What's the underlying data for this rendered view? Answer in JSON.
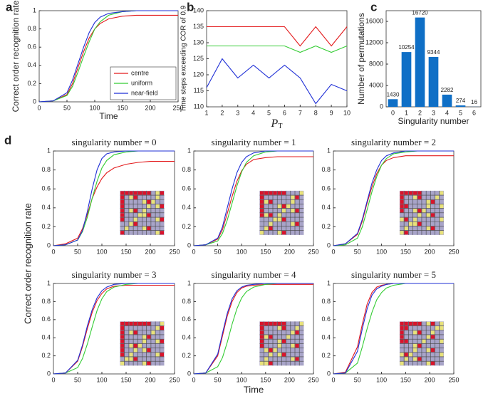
{
  "panel_labels": [
    "a",
    "b",
    "c",
    "d"
  ],
  "figure_d": {
    "xlabel": "Time",
    "ylabel": "Correct order recognition rate"
  },
  "chart_data": [
    {
      "type": "line",
      "xlabel": "Time",
      "ylabel": "Correct order recognition rate",
      "legend": "lower right",
      "x": [
        0,
        25,
        50,
        60,
        70,
        80,
        90,
        100,
        110,
        125,
        150,
        175,
        200,
        250
      ],
      "xlim": [
        0,
        250
      ],
      "xticks": [
        0,
        50,
        100,
        150,
        200,
        250
      ],
      "ylim": [
        0,
        1
      ],
      "yticks": [
        0,
        0.2,
        0.4,
        0.6,
        0.8,
        1
      ],
      "series": [
        {
          "name": "centre",
          "color": "#e31a1c",
          "values": [
            0,
            0.01,
            0.08,
            0.2,
            0.38,
            0.55,
            0.7,
            0.8,
            0.86,
            0.91,
            0.94,
            0.95,
            0.95,
            0.95
          ]
        },
        {
          "name": "uniform",
          "color": "#33cc33",
          "values": [
            0,
            0.01,
            0.07,
            0.17,
            0.33,
            0.5,
            0.66,
            0.8,
            0.88,
            0.95,
            0.99,
            1,
            1,
            1
          ]
        },
        {
          "name": "near-field",
          "color": "#1f2fd6",
          "values": [
            0,
            0.01,
            0.1,
            0.24,
            0.42,
            0.6,
            0.76,
            0.87,
            0.93,
            0.97,
            0.99,
            1,
            1,
            1
          ]
        }
      ]
    },
    {
      "type": "line",
      "xlabel": "P",
      "xlabel_subscript": "T",
      "ylabel": "Time steps exceeding COR of 0.9",
      "x": [
        1,
        2,
        3,
        4,
        5,
        6,
        7,
        8,
        9,
        10
      ],
      "xlim": [
        1,
        10
      ],
      "xticks": [
        1,
        2,
        3,
        4,
        5,
        6,
        7,
        8,
        9,
        10
      ],
      "ylim": [
        110,
        140
      ],
      "yticks": [
        110,
        115,
        120,
        125,
        130,
        135,
        140
      ],
      "series": [
        {
          "color": "#e31a1c",
          "values": [
            135,
            135,
            135,
            135,
            135,
            135,
            129,
            135,
            129,
            135
          ]
        },
        {
          "color": "#33cc33",
          "values": [
            129,
            129,
            129,
            129,
            129,
            129,
            127,
            129,
            127,
            129
          ]
        },
        {
          "color": "#1f2fd6",
          "values": [
            116,
            125,
            119,
            123,
            119,
            123,
            119,
            111,
            117,
            115
          ]
        }
      ]
    },
    {
      "type": "bar",
      "xlabel": "Singularity number",
      "ylabel": "Number of permutations",
      "color": "#0f6fc6",
      "categories": [
        "0",
        "1",
        "2",
        "3",
        "4",
        "5",
        "6"
      ],
      "values": [
        1430,
        10254,
        16720,
        9344,
        2282,
        274,
        16
      ],
      "ylim": [
        0,
        18000
      ],
      "yticks": [
        0,
        4000,
        8000,
        12000,
        16000
      ]
    },
    {
      "type": "line",
      "title": "singularity number = 0",
      "x": [
        0,
        25,
        50,
        60,
        70,
        80,
        90,
        100,
        110,
        125,
        150,
        175,
        200,
        250
      ],
      "xlim": [
        0,
        250
      ],
      "xticks": [
        0,
        50,
        100,
        150,
        200,
        250
      ],
      "ylim": [
        0,
        1
      ],
      "yticks": [
        0,
        0.2,
        0.4,
        0.6,
        0.8,
        1
      ],
      "series": [
        {
          "color": "#e31a1c",
          "values": [
            0,
            0.02,
            0.08,
            0.18,
            0.33,
            0.5,
            0.62,
            0.71,
            0.77,
            0.82,
            0.86,
            0.88,
            0.89,
            0.89
          ]
        },
        {
          "color": "#33cc33",
          "values": [
            0,
            0.01,
            0.06,
            0.15,
            0.3,
            0.5,
            0.68,
            0.82,
            0.9,
            0.96,
            0.99,
            1,
            1,
            1
          ]
        },
        {
          "color": "#1f2fd6",
          "values": [
            0,
            0.01,
            0.06,
            0.16,
            0.36,
            0.6,
            0.8,
            0.92,
            0.97,
            0.99,
            1,
            1,
            1,
            1
          ]
        }
      ]
    },
    {
      "type": "line",
      "title": "singularity number = 1",
      "x": [
        0,
        25,
        50,
        60,
        70,
        80,
        90,
        100,
        110,
        125,
        150,
        175,
        200,
        250
      ],
      "xlim": [
        0,
        250
      ],
      "xticks": [
        0,
        50,
        100,
        150,
        200,
        250
      ],
      "ylim": [
        0,
        1
      ],
      "yticks": [
        0,
        0.2,
        0.4,
        0.6,
        0.8,
        1
      ],
      "series": [
        {
          "color": "#e31a1c",
          "values": [
            0,
            0.01,
            0.07,
            0.17,
            0.34,
            0.52,
            0.68,
            0.79,
            0.86,
            0.91,
            0.93,
            0.94,
            0.94,
            0.94
          ]
        },
        {
          "color": "#33cc33",
          "values": [
            0,
            0.01,
            0.05,
            0.13,
            0.27,
            0.45,
            0.63,
            0.78,
            0.88,
            0.95,
            0.99,
            1,
            1,
            1
          ]
        },
        {
          "color": "#1f2fd6",
          "values": [
            0,
            0.01,
            0.08,
            0.2,
            0.4,
            0.6,
            0.77,
            0.88,
            0.94,
            0.98,
            1,
            1,
            1,
            1
          ]
        }
      ]
    },
    {
      "type": "line",
      "title": "singularity number = 2",
      "x": [
        0,
        25,
        50,
        60,
        70,
        80,
        90,
        100,
        110,
        125,
        150,
        175,
        200,
        250
      ],
      "xlim": [
        0,
        250
      ],
      "xticks": [
        0,
        50,
        100,
        150,
        200,
        250
      ],
      "ylim": [
        0,
        1
      ],
      "yticks": [
        0,
        0.2,
        0.4,
        0.6,
        0.8,
        1
      ],
      "series": [
        {
          "color": "#e31a1c",
          "values": [
            0,
            0.02,
            0.12,
            0.26,
            0.45,
            0.62,
            0.76,
            0.85,
            0.9,
            0.93,
            0.95,
            0.95,
            0.95,
            0.95
          ]
        },
        {
          "color": "#33cc33",
          "values": [
            0,
            0.01,
            0.08,
            0.2,
            0.38,
            0.57,
            0.73,
            0.85,
            0.92,
            0.97,
            0.99,
            1,
            1,
            1
          ]
        },
        {
          "color": "#1f2fd6",
          "values": [
            0,
            0.02,
            0.13,
            0.28,
            0.47,
            0.66,
            0.8,
            0.9,
            0.95,
            0.98,
            1,
            1,
            1,
            1
          ]
        }
      ]
    },
    {
      "type": "line",
      "title": "singularity number = 3",
      "x": [
        0,
        25,
        50,
        60,
        70,
        80,
        90,
        100,
        110,
        125,
        150,
        175,
        200,
        250
      ],
      "xlim": [
        0,
        250
      ],
      "xticks": [
        0,
        50,
        100,
        150,
        200,
        250
      ],
      "ylim": [
        0,
        1
      ],
      "yticks": [
        0,
        0.2,
        0.4,
        0.6,
        0.8,
        1
      ],
      "series": [
        {
          "color": "#e31a1c",
          "values": [
            0,
            0.01,
            0.14,
            0.3,
            0.5,
            0.68,
            0.81,
            0.89,
            0.94,
            0.97,
            0.98,
            0.98,
            0.98,
            0.98
          ]
        },
        {
          "color": "#33cc33",
          "values": [
            0,
            0.01,
            0.07,
            0.17,
            0.33,
            0.52,
            0.7,
            0.83,
            0.91,
            0.96,
            0.99,
            1,
            1,
            1
          ]
        },
        {
          "color": "#1f2fd6",
          "values": [
            0,
            0.01,
            0.15,
            0.32,
            0.53,
            0.71,
            0.84,
            0.92,
            0.96,
            0.99,
            1,
            1,
            1,
            1
          ]
        }
      ]
    },
    {
      "type": "line",
      "title": "singularity number = 4",
      "x": [
        0,
        25,
        50,
        60,
        70,
        80,
        90,
        100,
        110,
        125,
        150,
        175,
        200,
        250
      ],
      "xlim": [
        0,
        250
      ],
      "xticks": [
        0,
        50,
        100,
        150,
        200,
        250
      ],
      "ylim": [
        0,
        1
      ],
      "yticks": [
        0,
        0.2,
        0.4,
        0.6,
        0.8,
        1
      ],
      "series": [
        {
          "color": "#e31a1c",
          "values": [
            0,
            0.01,
            0.2,
            0.42,
            0.64,
            0.8,
            0.9,
            0.95,
            0.97,
            0.98,
            0.99,
            0.99,
            0.99,
            0.99
          ]
        },
        {
          "color": "#33cc33",
          "values": [
            0,
            0.01,
            0.08,
            0.18,
            0.35,
            0.55,
            0.72,
            0.84,
            0.91,
            0.96,
            0.99,
            1,
            1,
            1
          ]
        },
        {
          "color": "#1f2fd6",
          "values": [
            0,
            0.01,
            0.22,
            0.45,
            0.67,
            0.83,
            0.92,
            0.96,
            0.98,
            0.99,
            1,
            1,
            1,
            1
          ]
        }
      ]
    },
    {
      "type": "line",
      "title": "singularity number = 5",
      "x": [
        0,
        25,
        50,
        60,
        70,
        80,
        90,
        100,
        110,
        125,
        150,
        175,
        200,
        250
      ],
      "xlim": [
        0,
        250
      ],
      "xticks": [
        0,
        50,
        100,
        150,
        200,
        250
      ],
      "ylim": [
        0,
        1
      ],
      "yticks": [
        0,
        0.2,
        0.4,
        0.6,
        0.8,
        1
      ],
      "series": [
        {
          "color": "#e31a1c",
          "values": [
            0,
            0.02,
            0.3,
            0.55,
            0.77,
            0.9,
            0.96,
            0.98,
            0.99,
            1,
            1,
            1,
            1,
            1
          ]
        },
        {
          "color": "#33cc33",
          "values": [
            0,
            0.01,
            0.12,
            0.3,
            0.5,
            0.68,
            0.82,
            0.9,
            0.95,
            0.98,
            1,
            1,
            1,
            1
          ]
        },
        {
          "color": "#1f2fd6",
          "values": [
            0,
            0.01,
            0.25,
            0.5,
            0.72,
            0.87,
            0.94,
            0.97,
            0.99,
            1,
            1,
            1,
            1,
            1
          ]
        }
      ]
    }
  ]
}
